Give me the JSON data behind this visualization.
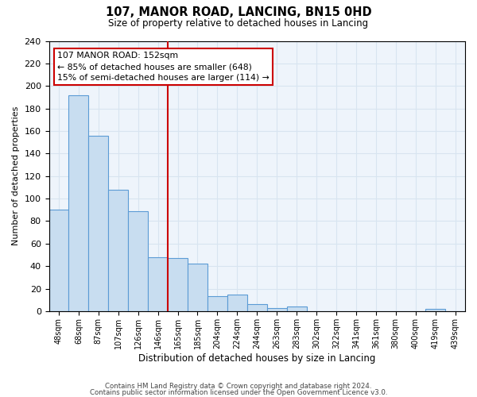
{
  "title": "107, MANOR ROAD, LANCING, BN15 0HD",
  "subtitle": "Size of property relative to detached houses in Lancing",
  "xlabel": "Distribution of detached houses by size in Lancing",
  "ylabel": "Number of detached properties",
  "bar_labels": [
    "48sqm",
    "68sqm",
    "87sqm",
    "107sqm",
    "126sqm",
    "146sqm",
    "165sqm",
    "185sqm",
    "204sqm",
    "224sqm",
    "244sqm",
    "263sqm",
    "283sqm",
    "302sqm",
    "322sqm",
    "341sqm",
    "361sqm",
    "380sqm",
    "400sqm",
    "419sqm",
    "439sqm"
  ],
  "bar_values": [
    90,
    192,
    156,
    108,
    89,
    48,
    47,
    42,
    13,
    15,
    6,
    3,
    4,
    0,
    0,
    0,
    0,
    0,
    0,
    2,
    0
  ],
  "bar_color": "#c8ddf0",
  "bar_edge_color": "#5b9bd5",
  "vline_x": 5.5,
  "vline_color": "#cc0000",
  "annotation_line1": "107 MANOR ROAD: 152sqm",
  "annotation_line2": "← 85% of detached houses are smaller (648)",
  "annotation_line3": "15% of semi-detached houses are larger (114) →",
  "annotation_box_color": "#ffffff",
  "annotation_box_edge": "#cc0000",
  "ylim": [
    0,
    240
  ],
  "yticks": [
    0,
    20,
    40,
    60,
    80,
    100,
    120,
    140,
    160,
    180,
    200,
    220,
    240
  ],
  "footer1": "Contains HM Land Registry data © Crown copyright and database right 2024.",
  "footer2": "Contains public sector information licensed under the Open Government Licence v3.0.",
  "background_color": "#ffffff",
  "grid_color": "#d8e4f0"
}
